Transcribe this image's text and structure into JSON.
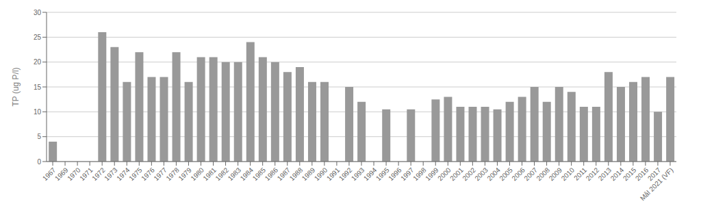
{
  "chart_data": {
    "type": "bar",
    "y_label": "TP (ug P/l)",
    "categories": [
      "1967",
      "1969",
      "1970",
      "1971",
      "1972",
      "1973",
      "1974",
      "1975",
      "1976",
      "1977",
      "1978",
      "1979",
      "1980",
      "1981",
      "1982",
      "1983",
      "1984",
      "1985",
      "1986",
      "1987",
      "1988",
      "1989",
      "1990",
      "1991",
      "1992",
      "1993",
      "1994",
      "1995",
      "1996",
      "1997",
      "1998",
      "1999",
      "2000",
      "2001",
      "2002",
      "2003",
      "2004",
      "2005",
      "2006",
      "2007",
      "2008",
      "2009",
      "2010",
      "2011",
      "2012",
      "2013",
      "2014",
      "2015",
      "2016",
      "2017",
      "Mål 2021 (VF)"
    ],
    "values": [
      4,
      null,
      null,
      null,
      26,
      23,
      16,
      22,
      17,
      17,
      22,
      16,
      21,
      21,
      20,
      20,
      24,
      21,
      20,
      18,
      19,
      16,
      16,
      null,
      15,
      12,
      null,
      10.5,
      null,
      10.5,
      null,
      12.5,
      13,
      11,
      11,
      11,
      10.5,
      12,
      13,
      15,
      12,
      15,
      14,
      11,
      11,
      18,
      15,
      16,
      17,
      10,
      17
    ],
    "color": "#999999",
    "ylim": [
      0,
      30
    ],
    "yticks": [
      0,
      5,
      10,
      15,
      20,
      25,
      30
    ],
    "grid": true
  }
}
